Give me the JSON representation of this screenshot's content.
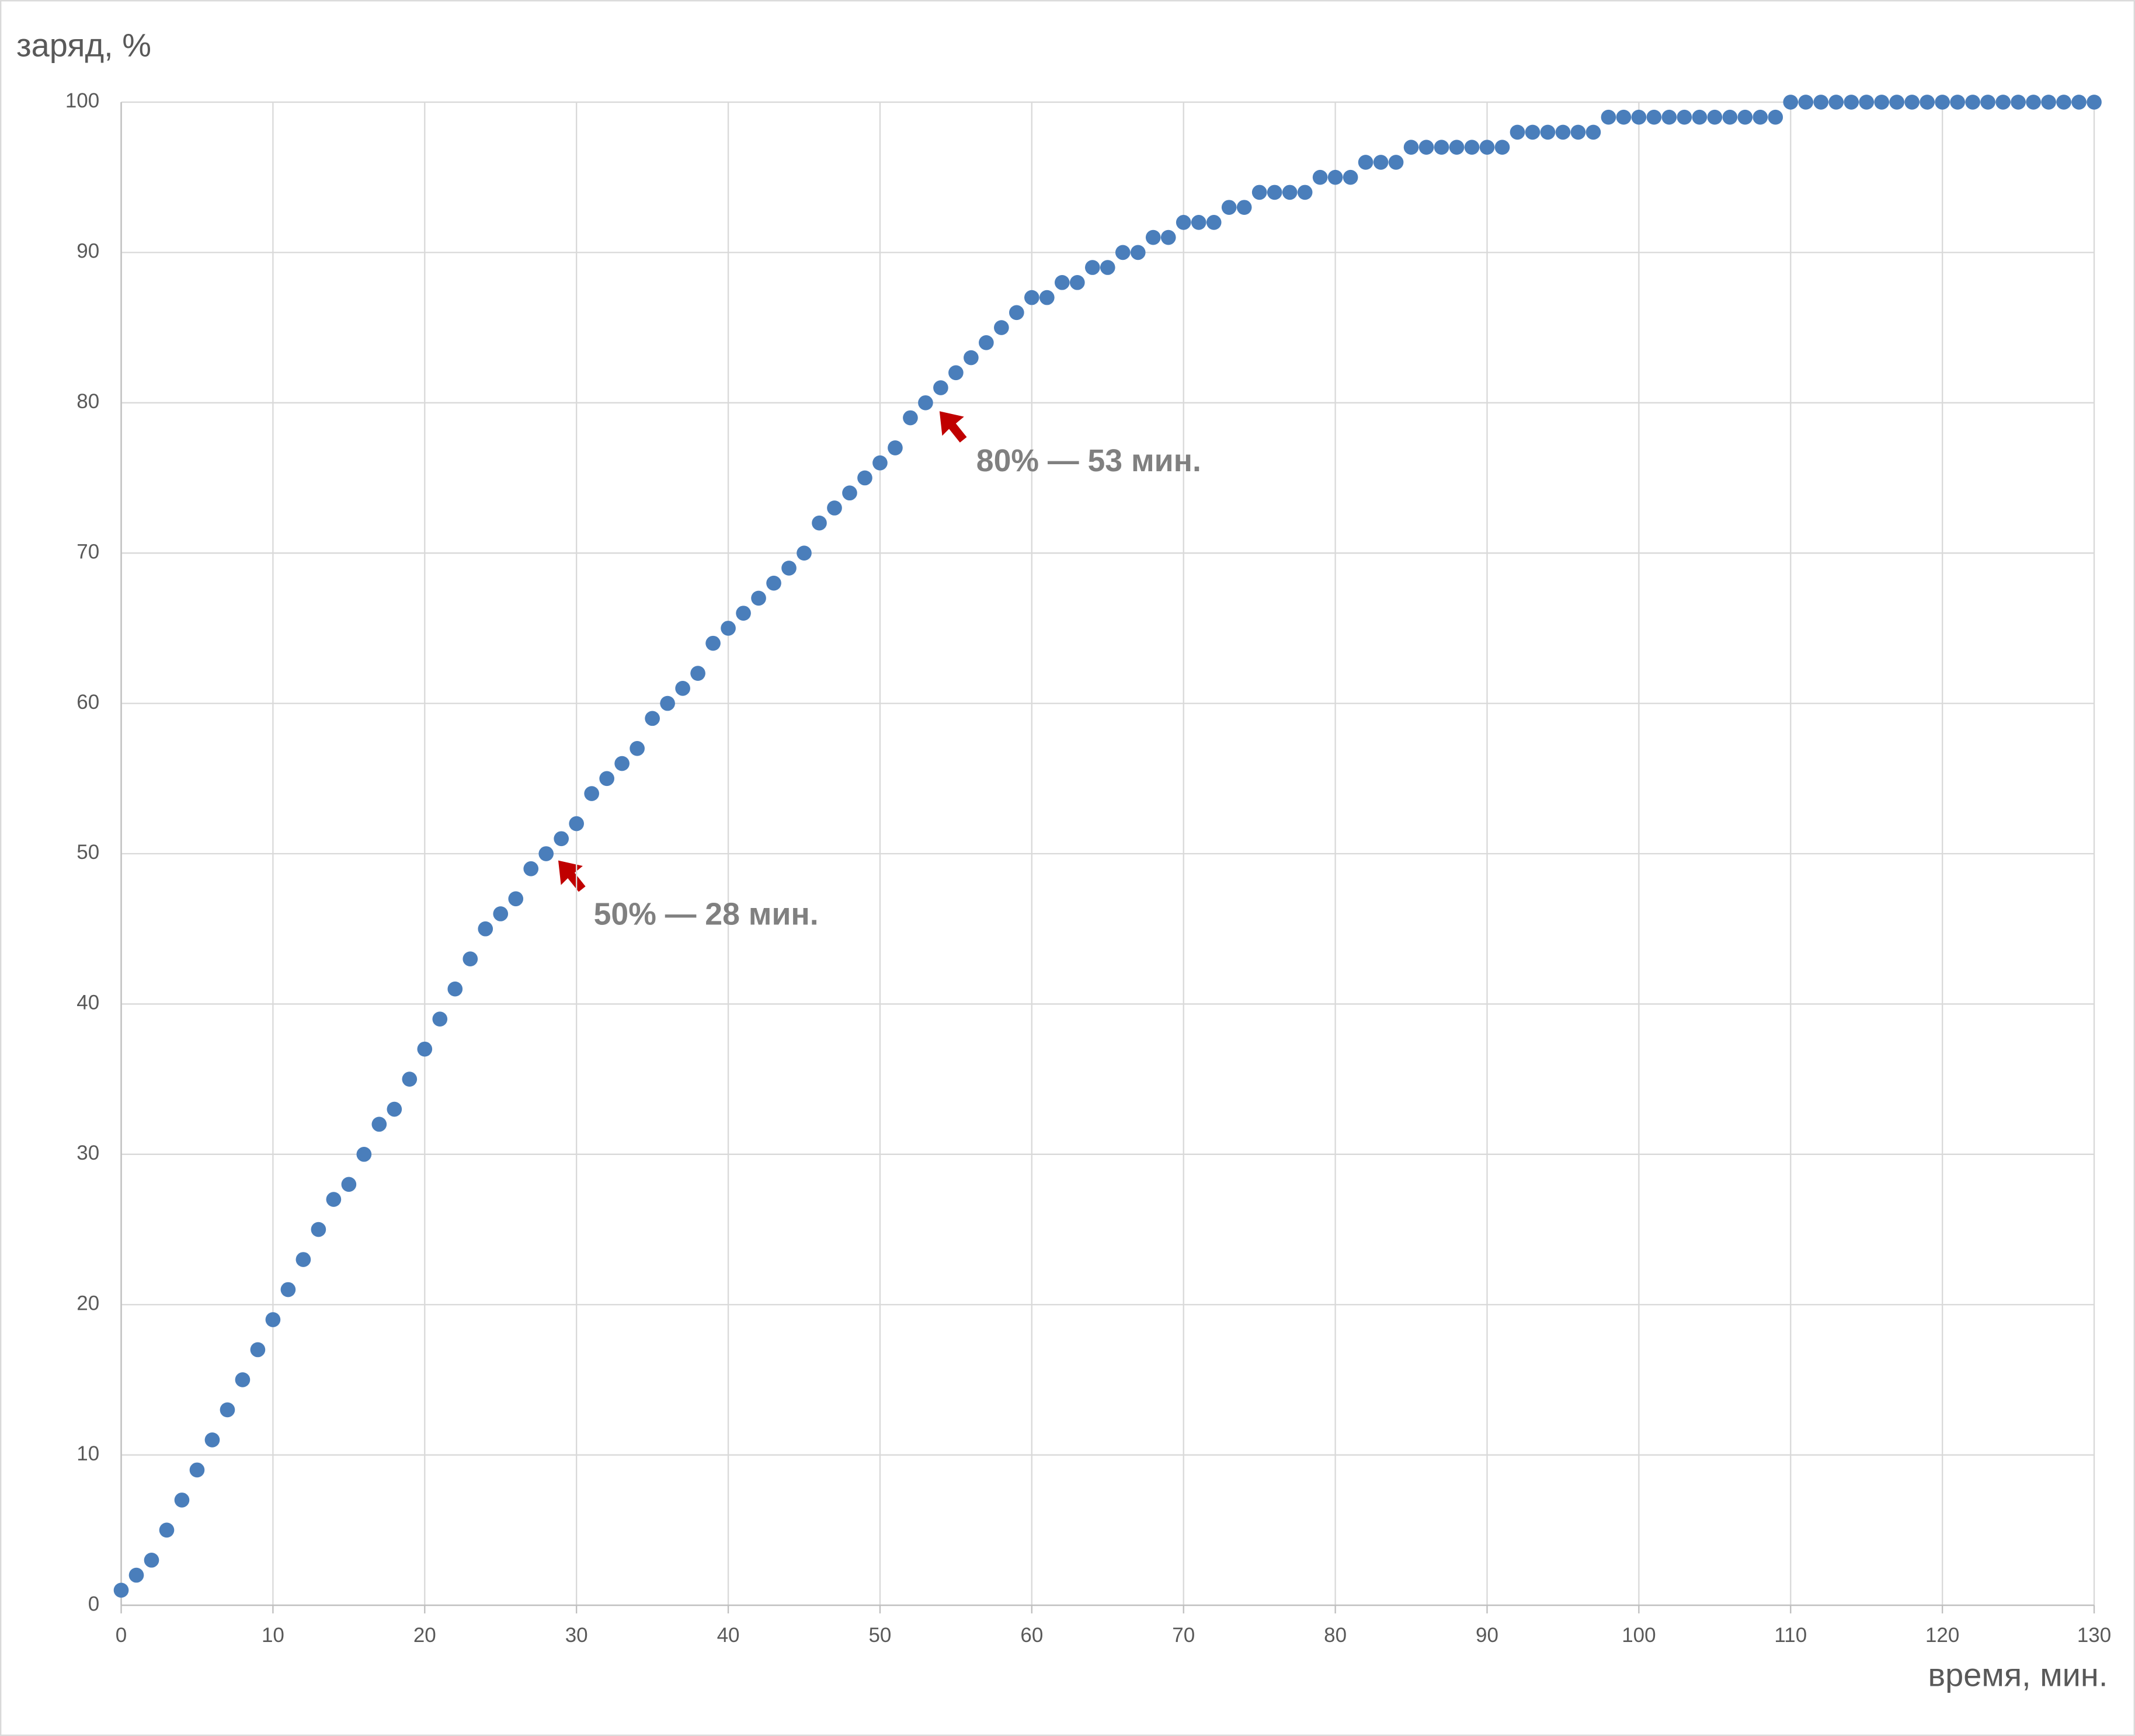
{
  "chart_data": {
    "type": "scatter",
    "y_label": "заряд, %",
    "x_label": "время, мин.",
    "x": [
      0,
      1,
      2,
      3,
      4,
      5,
      6,
      7,
      8,
      9,
      10,
      11,
      12,
      13,
      14,
      15,
      16,
      17,
      18,
      19,
      20,
      21,
      22,
      23,
      24,
      25,
      26,
      27,
      28,
      29,
      30,
      31,
      32,
      33,
      34,
      35,
      36,
      37,
      38,
      39,
      40,
      41,
      42,
      43,
      44,
      45,
      46,
      47,
      48,
      49,
      50,
      51,
      52,
      53,
      54,
      55,
      56,
      57,
      58,
      59,
      60,
      61,
      62,
      63,
      64,
      65,
      66,
      67,
      68,
      69,
      70,
      71,
      72,
      73,
      74,
      75,
      76,
      77,
      78,
      79,
      80,
      81,
      82,
      83,
      84,
      85,
      86,
      87,
      88,
      89,
      90,
      91,
      92,
      93,
      94,
      95,
      96,
      97,
      98,
      99,
      100,
      101,
      102,
      103,
      104,
      105,
      106,
      107,
      108,
      109,
      110,
      111,
      112,
      113,
      114,
      115,
      116,
      117,
      118,
      119,
      120,
      121,
      122,
      123,
      124,
      125,
      126,
      127,
      128,
      129,
      130
    ],
    "values": [
      1,
      2,
      3,
      5,
      7,
      9,
      11,
      13,
      15,
      17,
      19,
      21,
      23,
      25,
      27,
      28,
      30,
      32,
      33,
      35,
      37,
      39,
      41,
      43,
      45,
      46,
      47,
      49,
      50,
      51,
      52,
      54,
      55,
      56,
      57,
      59,
      60,
      61,
      62,
      64,
      65,
      66,
      67,
      68,
      69,
      70,
      72,
      73,
      74,
      75,
      76,
      77,
      79,
      80,
      81,
      82,
      83,
      84,
      85,
      86,
      87,
      87,
      88,
      88,
      89,
      89,
      90,
      90,
      91,
      91,
      92,
      92,
      92,
      93,
      93,
      94,
      94,
      94,
      94,
      95,
      95,
      95,
      96,
      96,
      96,
      97,
      97,
      97,
      97,
      97,
      97,
      97,
      98,
      98,
      98,
      98,
      98,
      98,
      99,
      99,
      99,
      99,
      99,
      99,
      99,
      99,
      99,
      99,
      99,
      99,
      100,
      100,
      100,
      100,
      100,
      100,
      100,
      100,
      100,
      100,
      100,
      100,
      100,
      100,
      100,
      100,
      100,
      100,
      100,
      100,
      100
    ],
    "color": "#4a7ebb",
    "xlim": [
      0,
      130
    ],
    "xticks": [
      0,
      10,
      20,
      30,
      40,
      50,
      60,
      70,
      80,
      90,
      100,
      110,
      120,
      130
    ],
    "ylim": [
      0,
      100
    ],
    "yticks": [
      0,
      10,
      20,
      30,
      40,
      50,
      60,
      70,
      80,
      90,
      100
    ],
    "grid": true,
    "annotations": [
      "50% — 28 мин.",
      "80% — 53 мин."
    ]
  }
}
